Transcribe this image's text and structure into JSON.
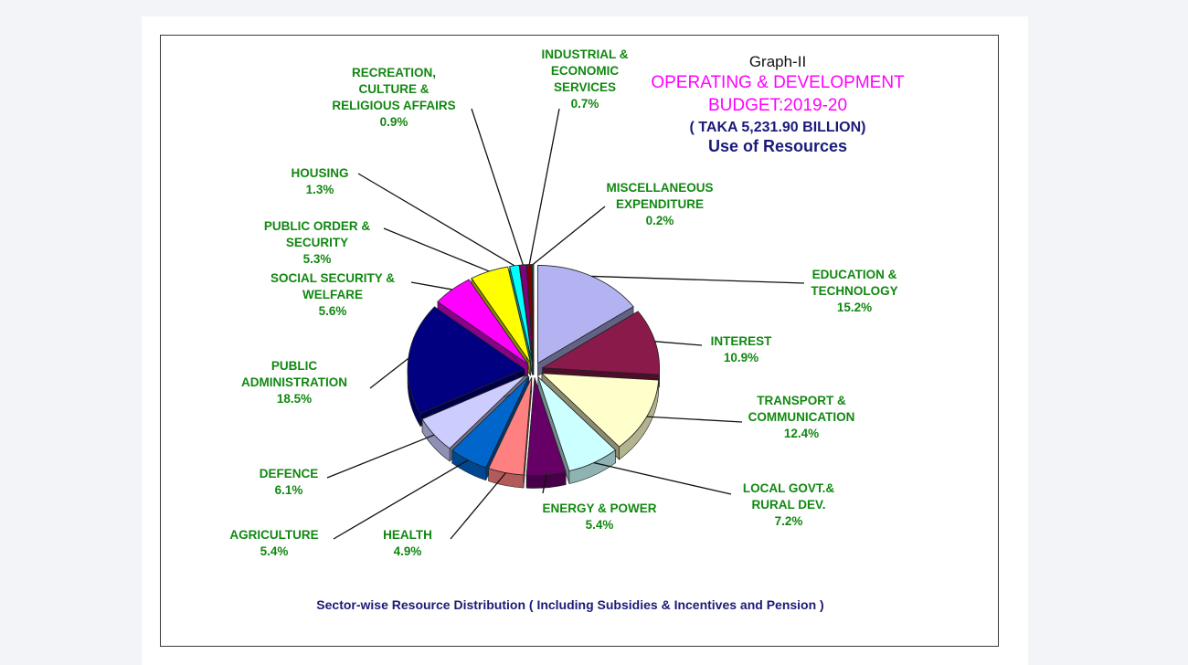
{
  "chart_data": {
    "type": "pie",
    "graph_label": "Graph-II",
    "title_lines": [
      "OPERATING & DEVELOPMENT",
      "BUDGET:2019-20"
    ],
    "subtitle_lines": [
      "( TAKA 5,231.90 BILLION)",
      "Use of Resources"
    ],
    "footnote": "Sector-wise Resource Distribution ( Including Subsidies &  Incentives and Pension )",
    "slices": [
      {
        "label_lines": [
          "EDUCATION  &",
          "TECHNOLOGY"
        ],
        "value_text": "15.2%",
        "value": 15.2,
        "color": "#b3b3f2"
      },
      {
        "label_lines": [
          "INTEREST"
        ],
        "value_text": "10.9%",
        "value": 10.9,
        "color": "#8a1a4a"
      },
      {
        "label_lines": [
          "TRANSPORT &",
          "COMMUNICATION"
        ],
        "value_text": "12.4%",
        "value": 12.4,
        "color": "#ffffcc"
      },
      {
        "label_lines": [
          "LOCAL GOVT.&",
          "RURAL DEV."
        ],
        "value_text": "7.2%",
        "value": 7.2,
        "color": "#ccffff"
      },
      {
        "label_lines": [
          "ENERGY & POWER"
        ],
        "value_text": "5.4%",
        "value": 5.4,
        "color": "#660066"
      },
      {
        "label_lines": [
          "HEALTH"
        ],
        "value_text": "4.9%",
        "value": 4.9,
        "color": "#ff8080"
      },
      {
        "label_lines": [
          "AGRICULTURE"
        ],
        "value_text": "5.4%",
        "value": 5.4,
        "color": "#0066cc"
      },
      {
        "label_lines": [
          "DEFENCE"
        ],
        "value_text": "6.1%",
        "value": 6.1,
        "color": "#ccccff"
      },
      {
        "label_lines": [
          "PUBLIC",
          "ADMINISTRATION"
        ],
        "value_text": "18.5%",
        "value": 18.5,
        "color": "#000080"
      },
      {
        "label_lines": [
          "SOCIAL SECURITY &",
          "WELFARE"
        ],
        "value_text": "5.6%",
        "value": 5.6,
        "color": "#ff00ff"
      },
      {
        "label_lines": [
          "PUBLIC ORDER &",
          "SECURITY"
        ],
        "value_text": "5.3%",
        "value": 5.3,
        "color": "#ffff00"
      },
      {
        "label_lines": [
          "HOUSING"
        ],
        "value_text": "1.3%",
        "value": 1.3,
        "color": "#00ffff"
      },
      {
        "label_lines": [
          "RECREATION,",
          "CULTURE &",
          "RELIGIOUS AFFAIRS"
        ],
        "value_text": "0.9%",
        "value": 0.9,
        "color": "#800080"
      },
      {
        "label_lines": [
          "INDUSTRIAL &",
          "ECONOMIC",
          "SERVICES"
        ],
        "value_text": "0.7%",
        "value": 0.7,
        "color": "#800000"
      },
      {
        "label_lines": [
          "MISCELLANEOUS",
          "EXPENDITURE"
        ],
        "value_text": "0.2%",
        "value": 0.2,
        "color": "#008080"
      }
    ]
  }
}
